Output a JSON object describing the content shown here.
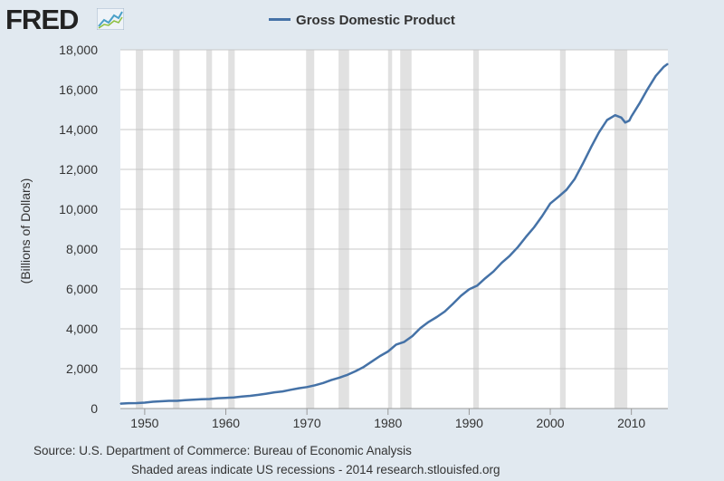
{
  "logo": {
    "text": "FRED",
    "icon": "trend-graph-icon"
  },
  "colors": {
    "line": "#4572a7",
    "recession": "#e1e1e1",
    "grid": "#c8c8c8",
    "background": "#e1e9f0"
  },
  "chart_data": {
    "type": "line",
    "title": "Gross Domestic Product",
    "xlabel": "",
    "ylabel": "(Billions of Dollars)",
    "xlim": [
      1947,
      2014.5
    ],
    "ylim": [
      0,
      18000
    ],
    "x_ticks": [
      1950,
      1960,
      1970,
      1980,
      1990,
      2000,
      2010
    ],
    "y_ticks": [
      0,
      2000,
      4000,
      6000,
      8000,
      10000,
      12000,
      14000,
      16000,
      18000
    ],
    "y_tick_labels": [
      "0",
      "2,000",
      "4,000",
      "6,000",
      "8,000",
      "10,000",
      "12,000",
      "14,000",
      "16,000",
      "18,000"
    ],
    "grid": true,
    "legend": "top-center",
    "recessions": [
      [
        1948.9,
        1949.8
      ],
      [
        1953.5,
        1954.3
      ],
      [
        1957.6,
        1958.3
      ],
      [
        1960.3,
        1961.1
      ],
      [
        1969.9,
        1970.9
      ],
      [
        1973.9,
        1975.2
      ],
      [
        1980.0,
        1980.5
      ],
      [
        1981.5,
        1982.9
      ],
      [
        1990.5,
        1991.2
      ],
      [
        2001.2,
        2001.9
      ],
      [
        2007.9,
        2009.5
      ]
    ],
    "series": [
      {
        "name": "Gross Domestic Product",
        "x": [
          1947,
          1948,
          1949,
          1950,
          1951,
          1952,
          1953,
          1954,
          1955,
          1956,
          1957,
          1958,
          1959,
          1960,
          1961,
          1962,
          1963,
          1964,
          1965,
          1966,
          1967,
          1968,
          1969,
          1970,
          1971,
          1972,
          1973,
          1974,
          1975,
          1976,
          1977,
          1978,
          1979,
          1980,
          1981,
          1982,
          1983,
          1984,
          1985,
          1986,
          1987,
          1988,
          1989,
          1990,
          1991,
          1992,
          1993,
          1994,
          1995,
          1996,
          1997,
          1998,
          1999,
          2000,
          2001,
          2002,
          2003,
          2004,
          2005,
          2006,
          2007,
          2008,
          2008.75,
          2009.25,
          2009.75,
          2010,
          2011,
          2012,
          2013,
          2014,
          2014.5
        ],
        "values": [
          244,
          270,
          272,
          294,
          340,
          362,
          386,
          386,
          418,
          441,
          468,
          477,
          517,
          538,
          558,
          605,
          638,
          686,
          744,
          815,
          861,
          943,
          1020,
          1076,
          1168,
          1283,
          1427,
          1549,
          1689,
          1878,
          2086,
          2357,
          2632,
          2862,
          3211,
          3345,
          3638,
          4041,
          4347,
          4590,
          4870,
          5253,
          5658,
          5980,
          6174,
          6539,
          6879,
          7309,
          7664,
          8100,
          8609,
          9089,
          9661,
          10285,
          10622,
          10978,
          11511,
          12275,
          13094,
          13856,
          14478,
          14719,
          14600,
          14350,
          14450,
          14660,
          15310,
          16030,
          16690,
          17150,
          17300
        ]
      }
    ]
  },
  "footer": {
    "source": "Source: U.S. Department of Commerce: Bureau of Economic Analysis",
    "note": "Shaded areas indicate US recessions - 2014 research.stlouisfed.org"
  }
}
